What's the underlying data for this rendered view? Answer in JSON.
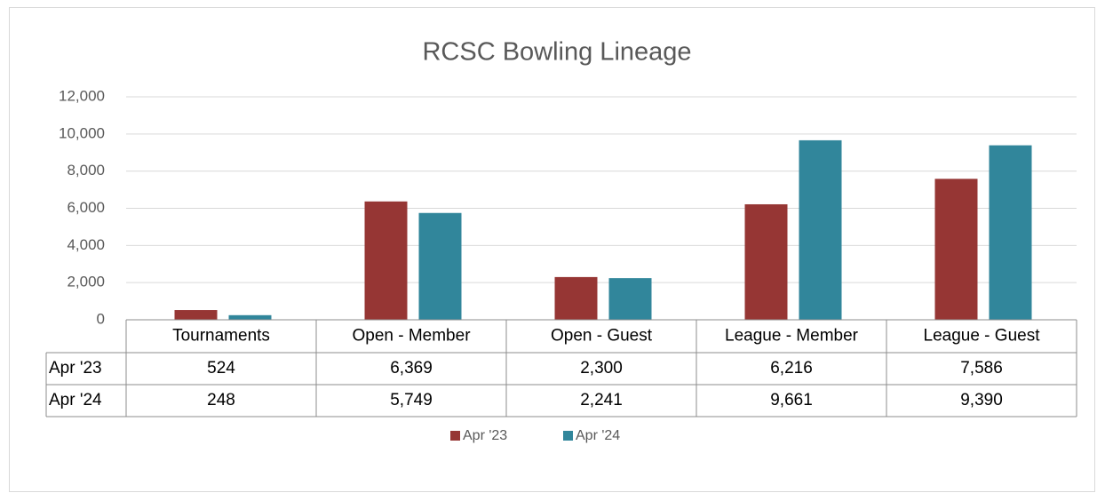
{
  "chart_data": {
    "type": "bar",
    "title": "RCSC Bowling Lineage",
    "categories": [
      "Tournaments",
      "Open - Member",
      "Open - Guest",
      "League - Member",
      "League - Guest"
    ],
    "series": [
      {
        "name": "Apr '23",
        "color": "#963634",
        "values": [
          524,
          6369,
          2300,
          6216,
          7586
        ],
        "value_labels": [
          "524",
          "6,369",
          "2,300",
          "6,216",
          "7,586"
        ]
      },
      {
        "name": "Apr '24",
        "color": "#31869b",
        "values": [
          248,
          5749,
          2241,
          9661,
          9390
        ],
        "value_labels": [
          "248",
          "5,749",
          "2,241",
          "9,661",
          "9,390"
        ]
      }
    ],
    "ylim": [
      0,
      12000
    ],
    "yticks": [
      0,
      {
        "value": 2000,
        "label": "2,000"
      },
      {
        "value": 4000,
        "label": "4,000"
      },
      {
        "value": 6000,
        "label": "6,000"
      },
      {
        "value": 8000,
        "label": "8,000"
      },
      {
        "value": 10000,
        "label": "10,000"
      },
      {
        "value": 12000,
        "label": "12,000"
      }
    ],
    "grid": true,
    "legend": "bottom"
  }
}
